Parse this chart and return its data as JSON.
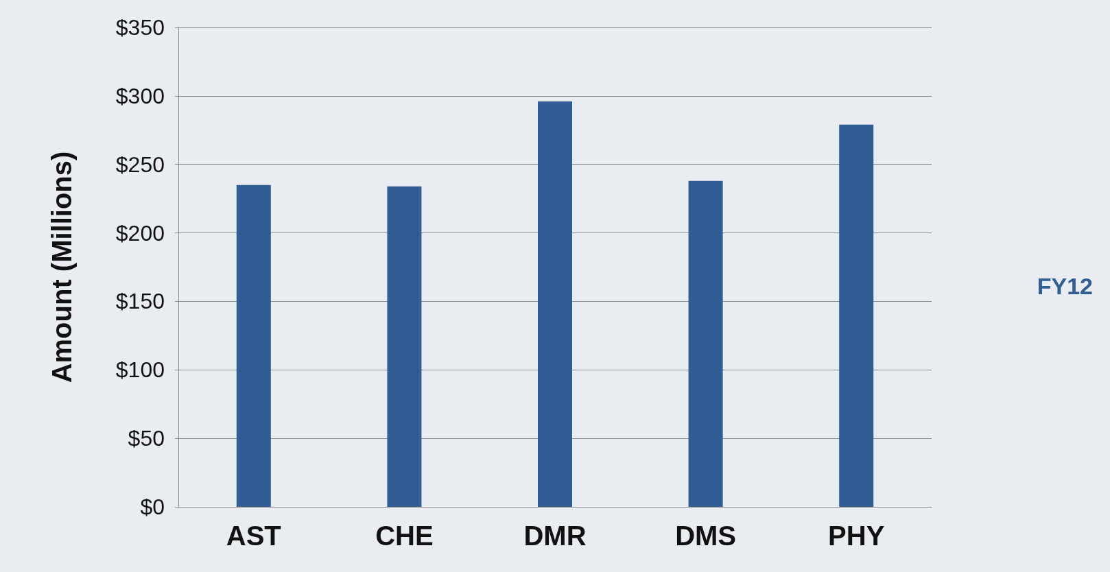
{
  "chart_data": {
    "type": "bar",
    "ylabel": "Amount (Millions)",
    "categories": [
      "AST",
      "CHE",
      "DMR",
      "DMS",
      "PHY"
    ],
    "series": [
      {
        "name": "FY12",
        "color": "#2f5d94",
        "values": [
          235,
          234,
          296,
          238,
          279
        ]
      }
    ],
    "ylim": [
      0,
      350
    ],
    "yticks": [
      {
        "value": 0,
        "label": "$0"
      },
      {
        "value": 50,
        "label": "$50"
      },
      {
        "value": 100,
        "label": "$100"
      },
      {
        "value": 150,
        "label": "$150"
      },
      {
        "value": 200,
        "label": "$200"
      },
      {
        "value": 250,
        "label": "$250"
      },
      {
        "value": 300,
        "label": "$300"
      },
      {
        "value": 350,
        "label": "$350"
      }
    ],
    "grid": "y",
    "legend": "right"
  }
}
